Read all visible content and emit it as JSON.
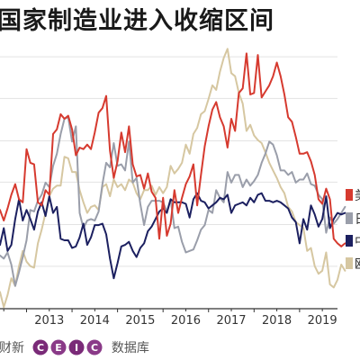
{
  "title": "国家制造业进入收缩区间",
  "legend": [
    {
      "label": "美",
      "color": "#d63a2f"
    },
    {
      "label": "日",
      "color": "#9a9eaa"
    },
    {
      "label": "中",
      "color": "#1c2060"
    },
    {
      "label": "欧",
      "color": "#d6c7a1"
    }
  ],
  "source": {
    "caixin": "财新",
    "logo_text": "CEIC",
    "database": "数据库"
  },
  "chart_data": {
    "type": "line",
    "title": "国家制造业进入收缩区间",
    "xlabel": "",
    "ylabel": "",
    "xlim": [
      "2012-06",
      "2019-11"
    ],
    "ylim": [
      44,
      61
    ],
    "x_ticks": [
      "2013",
      "2014",
      "2015",
      "2016",
      "2017",
      "2018",
      "2019"
    ],
    "grid": "horizontal",
    "legend_position": "right",
    "start": "2012-06",
    "interval": "monthly",
    "series": [
      {
        "name": "美",
        "color": "#d63a2f",
        "values": [
          50.5,
          49.8,
          50.6,
          51.5,
          52.2,
          51.2,
          51.0,
          54.5,
          53.6,
          53.5,
          51.0,
          50.8,
          51.8,
          51.5,
          55.5,
          55.8,
          56.8,
          56.5,
          56.7,
          55.8,
          54.1,
          54.6,
          54.5,
          54.8,
          54.5,
          55.6,
          56.9,
          57.2,
          58.0,
          54.4,
          52.6,
          53.7,
          55.6,
          54.3,
          56.0,
          53.5,
          52.7,
          52.8,
          51.9,
          52.9,
          51.7,
          51.3,
          48.6,
          51.3,
          48.8,
          49.6,
          51.8,
          50.3,
          51.3,
          52.2,
          52.7,
          53.5,
          50.8,
          52.8,
          54.7,
          56.0,
          57.1,
          57.6,
          56.6,
          56.0,
          54.6,
          56.5,
          55.7,
          58.2,
          58.5,
          60.8,
          58.1,
          58.2,
          60.7,
          57.9,
          58.3,
          58.7,
          59.3,
          60.2,
          59.3,
          58.1,
          56.6,
          56.3,
          55.3,
          54.2,
          54.2,
          54.3,
          53.7,
          52.8,
          51.2,
          50.9,
          51.9,
          51.2,
          48.6,
          48.3,
          48.1,
          48.3
        ]
      },
      {
        "name": "日",
        "color": "#9a9eaa",
        "values": [
          47.5,
          47.3,
          47.7,
          46.9,
          45.5,
          46.4,
          47.4,
          48.5,
          50.5,
          50.4,
          51.1,
          51.5,
          52.3,
          52.0,
          53.4,
          54.2,
          55.5,
          56.5,
          56.6,
          55.0,
          56.0,
          50.3,
          49.3,
          49.8,
          49.9,
          49.8,
          50.4,
          52.2,
          53.6,
          53.3,
          54.9,
          53.4,
          53.5,
          53.1,
          55.0,
          52.3,
          52.6,
          50.9,
          49.5,
          50.7,
          51.1,
          51.1,
          51.1,
          51.0,
          50.4,
          51.2,
          49.3,
          49.4,
          48.4,
          47.7,
          47.8,
          47.9,
          48.5,
          49.2,
          49.5,
          50.5,
          50.3,
          51.8,
          51.3,
          51.0,
          53.0,
          52.3,
          52.8,
          52.8,
          52.0,
          52.5,
          52.1,
          52.4,
          52.8,
          53.6,
          54.2,
          55.0,
          54.8,
          54.1,
          53.1,
          53.1,
          52.8,
          53.0,
          52.3,
          52.5,
          52.5,
          52.9,
          52.2,
          52.1,
          51.5,
          51.2,
          49.0,
          50.0,
          49.6,
          49.9,
          50.3,
          50.7
        ]
      },
      {
        "name": "中",
        "color": "#1c2060",
        "values": [
          48.2,
          49.3,
          47.8,
          48.2,
          49.9,
          51.2,
          49.8,
          50.5,
          49.9,
          49.2,
          50.4,
          51.0,
          50.1,
          51.4,
          50.3,
          50.7,
          48.6,
          48.5,
          48.5,
          48.0,
          48.1,
          48.7,
          49.6,
          48.2,
          48.7,
          49.5,
          49.5,
          49.6,
          48.9,
          47.3,
          46.0,
          47.0,
          48.1,
          48.2,
          48.4,
          47.8,
          47.4,
          48.0,
          48.3,
          49.1,
          49.4,
          49.9,
          50.4,
          50.6,
          50.3,
          51.2,
          51.0,
          51.0,
          51.0,
          50.9,
          50.0,
          51.2,
          51.6,
          51.1,
          51.0,
          50.6,
          50.8,
          51.0,
          51.3,
          51.2,
          51.5,
          50.3,
          50.8,
          50.9,
          51.0,
          50.8,
          51.3,
          51.0,
          51.5,
          51.6,
          51.1,
          51.1,
          51.0,
          51.1,
          51.0,
          50.8,
          50.6,
          50.0,
          49.7,
          48.3,
          49.9,
          49.2,
          50.8,
          50.2,
          49.4,
          49.9,
          51.4,
          49.3,
          49.9,
          50.3,
          50.2,
          50.3
        ]
      },
      {
        "name": "欧",
        "color": "#d6c7a1",
        "values": [
          45.1,
          44.1,
          44.9,
          46.0,
          45.5,
          46.8,
          47.8,
          47.1,
          46.8,
          46.7,
          48.3,
          49.2,
          50.3,
          51.4,
          51.9,
          52.1,
          52.1,
          54.0,
          53.9,
          53.0,
          53.0,
          51.8,
          51.0,
          50.3,
          50.7,
          50.8,
          50.5,
          52.0,
          52.2,
          51.4,
          52.5,
          52.0,
          52.2,
          51.8,
          52.5,
          52.3,
          51.6,
          51.2,
          51.8,
          51.8,
          52.1,
          51.5,
          52.0,
          51.6,
          52.0,
          53.4,
          52.9,
          53.2,
          53.6,
          54.8,
          54.2,
          55.5,
          55.9,
          56.8,
          57.0,
          57.8,
          58.7,
          58.4,
          59.6,
          60.5,
          61.1,
          59.5,
          59.3,
          58.2,
          57.5,
          55.7,
          56.1,
          55.4,
          55.1,
          54.9,
          54.3,
          53.6,
          53.1,
          52.6,
          52.0,
          51.6,
          50.7,
          50.4,
          49.7,
          49.5,
          49.3,
          47.8,
          48.0,
          46.8,
          46.3,
          46.5,
          47.7,
          45.6,
          45.4,
          45.9,
          46.9,
          46.5
        ]
      }
    ]
  }
}
